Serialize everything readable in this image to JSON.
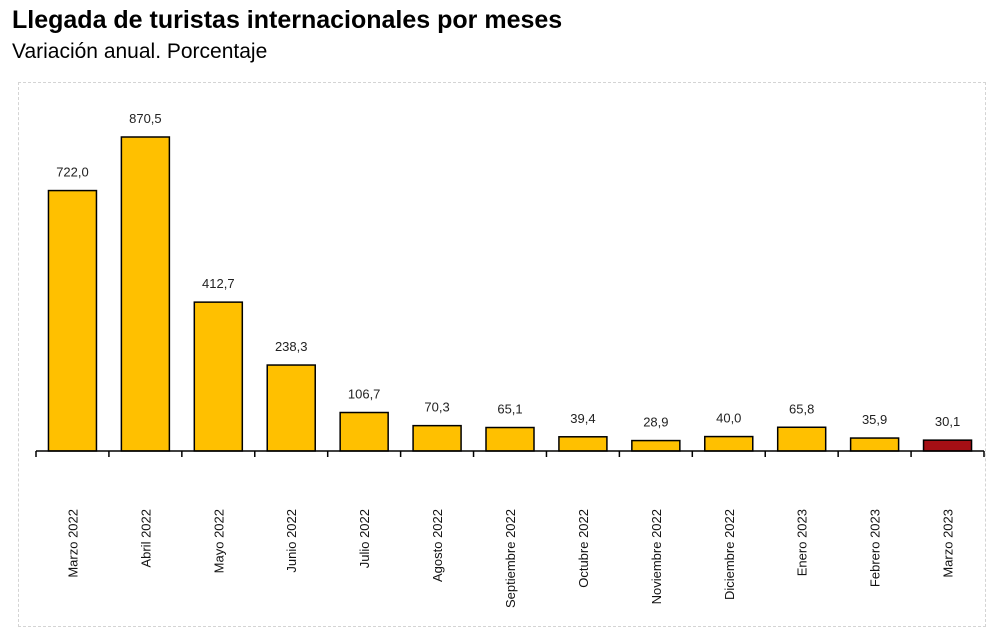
{
  "chart_data": {
    "type": "bar",
    "title": "Llegada de turistas internacionales por meses",
    "subtitle": "Variación anual. Porcentaje",
    "categories": [
      "Marzo 2022",
      "Abril 2022",
      "Mayo 2022",
      "Junio 2022",
      "Julio 2022",
      "Agosto 2022",
      "Septiembre 2022",
      "Octubre 2022",
      "Noviembre 2022",
      "Diciembre 2022",
      "Enero 2023",
      "Febrero 2023",
      "Marzo 2023"
    ],
    "values": [
      722.0,
      870.5,
      412.7,
      238.3,
      106.7,
      70.3,
      65.1,
      39.4,
      28.9,
      40.0,
      65.8,
      35.9,
      30.1
    ],
    "value_labels": [
      "722,0",
      "870,5",
      "412,7",
      "238,3",
      "106,7",
      "70,3",
      "65,1",
      "39,4",
      "28,9",
      "40,0",
      "65,8",
      "35,9",
      "30,1"
    ],
    "colors": [
      "#FFC000",
      "#FFC000",
      "#FFC000",
      "#FFC000",
      "#FFC000",
      "#FFC000",
      "#FFC000",
      "#FFC000",
      "#FFC000",
      "#FFC000",
      "#FFC000",
      "#FFC000",
      "#A50F15"
    ],
    "xlabel": "",
    "ylabel": "",
    "ylim": [
      0,
      870.5
    ],
    "grid": false,
    "legend": "none"
  }
}
